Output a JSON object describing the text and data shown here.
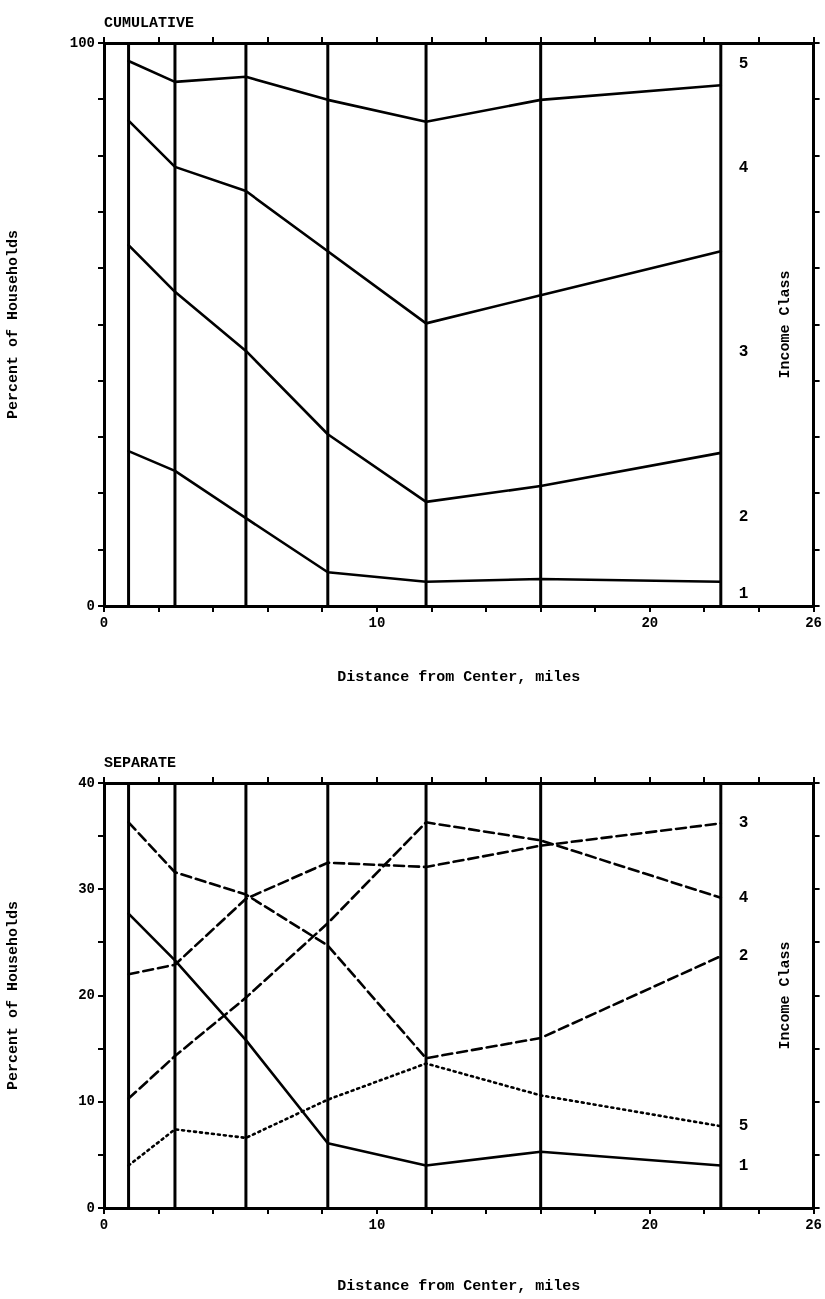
{
  "chart_data": [
    {
      "type": "line",
      "title": "CUMULATIVE",
      "xlabel": "Distance from Center, miles",
      "ylabel": "Percent of Households",
      "y2label": "Income Class",
      "x": [
        0.9,
        2.6,
        5.2,
        8.2,
        11.8,
        16.0,
        22.6
      ],
      "series": [
        {
          "color": "#000000",
          "line_style": "solid",
          "values": [
            96.8,
            93.1,
            94.0,
            89.9,
            86.0,
            89.9,
            92.5
          ]
        },
        {
          "color": "#000000",
          "line_style": "solid",
          "values": [
            86.2,
            78.0,
            73.7,
            63.0,
            50.2,
            55.2,
            63.0
          ]
        },
        {
          "color": "#000000",
          "line_style": "solid",
          "values": [
            64.1,
            55.8,
            45.3,
            30.5,
            18.5,
            21.3,
            27.2
          ]
        },
        {
          "color": "#000000",
          "line_style": "solid",
          "values": [
            27.5,
            24.0,
            15.6,
            6.0,
            4.3,
            4.8,
            4.3
          ]
        }
      ],
      "annotations": [
        "5",
        "4",
        "3",
        "2",
        "1"
      ],
      "ref_lines": [
        {
          "axis": "x",
          "value": 0.9
        },
        {
          "axis": "x",
          "value": 2.6
        },
        {
          "axis": "x",
          "value": 5.2
        },
        {
          "axis": "x",
          "value": 8.2
        },
        {
          "axis": "x",
          "value": 11.8
        },
        {
          "axis": "x",
          "value": 16.0
        },
        {
          "axis": "x",
          "value": 22.6
        }
      ],
      "xlim": [
        0,
        26
      ],
      "xticks": [
        0,
        {
          "value": 2,
          "label": null
        },
        {
          "value": 4,
          "label": null
        },
        {
          "value": 6,
          "label": null
        },
        {
          "value": 8,
          "label": null
        },
        10,
        {
          "value": 12,
          "label": null
        },
        {
          "value": 14,
          "label": null
        },
        {
          "value": 16,
          "label": null
        },
        {
          "value": 18,
          "label": null
        },
        20,
        {
          "value": 22,
          "label": null
        },
        {
          "value": 24,
          "label": null
        },
        26
      ],
      "ylim": [
        0,
        100
      ],
      "yticks": [
        0,
        {
          "value": 10,
          "label": null
        },
        {
          "value": 20,
          "label": null
        },
        {
          "value": 30,
          "label": null
        },
        {
          "value": 40,
          "label": null
        },
        {
          "value": 50,
          "label": null
        },
        {
          "value": 60,
          "label": null
        },
        {
          "value": 70,
          "label": null
        },
        {
          "value": 80,
          "label": null
        },
        {
          "value": 90,
          "label": null
        },
        100
      ],
      "grid": false,
      "legend": false,
      "marker": "none"
    },
    {
      "type": "line",
      "title": "SEPARATE",
      "xlabel": "Distance from Center, miles",
      "ylabel": "Percent of Households",
      "y2label": "Income Class",
      "x": [
        0.9,
        2.6,
        5.2,
        8.2,
        11.8,
        16.0,
        22.6
      ],
      "series": [
        {
          "name": "3",
          "color": "#000000",
          "line_style": "dashed",
          "values": [
            22.0,
            22.9,
            29.1,
            32.5,
            32.1,
            34.1,
            36.2
          ]
        },
        {
          "name": "4",
          "color": "#000000",
          "line_style": "dashed",
          "values": [
            10.3,
            14.3,
            19.8,
            26.8,
            36.3,
            34.6,
            29.2
          ]
        },
        {
          "name": "2",
          "color": "#000000",
          "line_style": "dashed",
          "values": [
            36.3,
            31.6,
            29.5,
            24.7,
            14.1,
            16.0,
            23.7
          ]
        },
        {
          "name": "5",
          "color": "#000000",
          "line_style": "dotted",
          "values": [
            4.0,
            7.4,
            6.6,
            10.2,
            13.6,
            10.6,
            7.7
          ]
        },
        {
          "name": "1",
          "color": "#000000",
          "line_style": "solid",
          "values": [
            27.7,
            23.3,
            15.8,
            6.1,
            4.0,
            5.3,
            4.0
          ]
        }
      ],
      "ref_lines": [
        {
          "axis": "x",
          "value": 0.9
        },
        {
          "axis": "x",
          "value": 2.6
        },
        {
          "axis": "x",
          "value": 5.2
        },
        {
          "axis": "x",
          "value": 8.2
        },
        {
          "axis": "x",
          "value": 11.8
        },
        {
          "axis": "x",
          "value": 16.0
        },
        {
          "axis": "x",
          "value": 22.6
        }
      ],
      "xlim": [
        0,
        26
      ],
      "xticks": [
        0,
        {
          "value": 2,
          "label": null
        },
        {
          "value": 4,
          "label": null
        },
        {
          "value": 6,
          "label": null
        },
        {
          "value": 8,
          "label": null
        },
        10,
        {
          "value": 12,
          "label": null
        },
        {
          "value": 14,
          "label": null
        },
        {
          "value": 16,
          "label": null
        },
        {
          "value": 18,
          "label": null
        },
        20,
        {
          "value": 22,
          "label": null
        },
        {
          "value": 24,
          "label": null
        },
        26
      ],
      "ylim": [
        0,
        40
      ],
      "yticks": [
        0,
        {
          "value": 5,
          "label": null
        },
        10,
        {
          "value": 15,
          "label": null
        },
        20,
        {
          "value": 25,
          "label": null
        },
        30,
        {
          "value": 35,
          "label": null
        },
        40
      ],
      "grid": false,
      "legend": false,
      "marker": "none"
    }
  ]
}
